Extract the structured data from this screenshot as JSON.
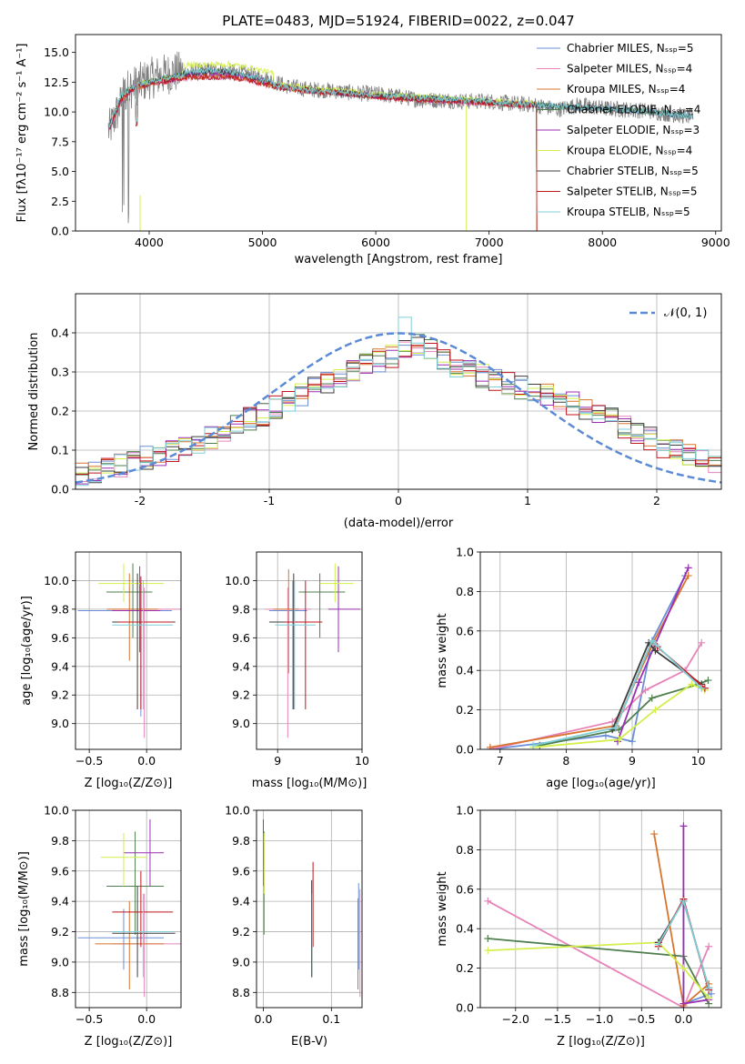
{
  "colors": [
    "#6a8fd8",
    "#e783b9",
    "#d8742c",
    "#4f7f4f",
    "#9b2fb3",
    "#d2ef4c",
    "#3d3d3d",
    "#c0161c",
    "#7fcfd6"
  ],
  "gray": "#808080",
  "normal_curve_color": "#5b8bd6",
  "chart_data": [
    {
      "id": "spectrum",
      "type": "line",
      "title": "PLATE=0483, MJD=51924, FIBERID=0022, z=0.047",
      "xlabel": "wavelength [Angstrom, rest frame]",
      "ylabel": "Flux [fλ10⁻¹⁷ erg cm⁻² s⁻¹ A⁻¹]",
      "xlim": [
        3350,
        9050
      ],
      "ylim": [
        0,
        16.5
      ],
      "xticks": [
        4000,
        5000,
        6000,
        7000,
        8000,
        9000
      ],
      "yticks": [
        0.0,
        2.5,
        5.0,
        7.5,
        10.0,
        12.5,
        15.0
      ],
      "ytick_labels": [
        "0.0",
        "2.5",
        "5.0",
        "7.5",
        "10.0",
        "12.5",
        "15.0"
      ],
      "grid": false,
      "legend_location": "upper right",
      "legend": [
        "Chabrier MILES, Nₛₛₚ=5",
        "Salpeter MILES, Nₛₛₚ=4",
        "Kroupa MILES, Nₛₛₚ=4",
        "Chabrier ELODIE, Nₛₛₚ=4",
        "Salpeter ELODIE, Nₛₛₚ=3",
        "Kroupa ELODIE, Nₛₛₚ=4",
        "Chabrier STELIB, Nₛₛₚ=5",
        "Salpeter STELIB, Nₛₛₚ=5",
        "Kroupa STELIB, Nₛₛₚ=5"
      ],
      "data_x": [
        3650,
        3800,
        4000,
        4200,
        4400,
        4600,
        4800,
        5000,
        5200,
        5400,
        5600,
        5800,
        6000,
        6200,
        6400,
        6600,
        6800,
        7000,
        7200,
        7400,
        7600,
        7800,
        8000,
        8200,
        8400,
        8600,
        8800
      ],
      "data_y": [
        8.5,
        11.8,
        12.8,
        13.3,
        13.4,
        13.5,
        13.3,
        12.9,
        12.2,
        11.9,
        11.8,
        11.6,
        11.5,
        11.3,
        11.0,
        11.0,
        10.9,
        10.9,
        10.7,
        10.6,
        10.2,
        10.6,
        10.3,
        10.2,
        10.1,
        9.8,
        9.6
      ],
      "model_x": [
        3650,
        3750,
        3850,
        4000,
        4150,
        4300,
        4500,
        4700,
        4900,
        5100,
        5300,
        5500,
        5700,
        5900,
        6100,
        6300,
        6500,
        6700,
        6900,
        7100,
        7300,
        7420
      ],
      "model_y": [
        8.6,
        11.0,
        11.9,
        12.4,
        12.6,
        12.9,
        13.0,
        13.0,
        12.7,
        12.2,
        11.9,
        11.7,
        11.6,
        11.4,
        11.2,
        11.1,
        11.0,
        10.9,
        10.8,
        10.7,
        10.6,
        10.6
      ],
      "stelib_x": [
        3650,
        3750,
        3850,
        4000,
        4150,
        4300,
        4500,
        4700,
        4900,
        5100,
        5300,
        5500,
        5700,
        5900,
        6100,
        6300,
        6500,
        6700,
        6900,
        7100,
        7300,
        7500,
        7700,
        7900,
        8100,
        8300,
        8500,
        8700,
        8800
      ],
      "stelib_y": [
        8.8,
        11.3,
        12.0,
        12.5,
        12.8,
        13.1,
        13.3,
        13.2,
        12.8,
        12.2,
        11.9,
        11.7,
        11.6,
        11.4,
        11.3,
        11.2,
        11.1,
        11.0,
        10.9,
        10.7,
        10.6,
        10.5,
        10.4,
        10.3,
        10.2,
        10.1,
        9.9,
        9.7,
        9.6
      ]
    },
    {
      "id": "residual-hist",
      "type": "line",
      "xlabel": "(data-model)/error",
      "ylabel": "Normed distribution",
      "xlim": [
        -2.5,
        2.5
      ],
      "ylim": [
        0,
        0.5
      ],
      "xticks": [
        -2,
        -1,
        0,
        1,
        2
      ],
      "yticks": [
        0.0,
        0.1,
        0.2,
        0.3,
        0.4
      ],
      "ytick_labels": [
        "0.0",
        "0.1",
        "0.2",
        "0.3",
        "0.4"
      ],
      "grid": true,
      "legend_location": "upper right",
      "legend": [
        "𝒩(0, 1)"
      ],
      "bin_start": -2.5,
      "bin_width": 0.1,
      "base": [
        0.04,
        0.045,
        0.05,
        0.06,
        0.07,
        0.08,
        0.09,
        0.1,
        0.11,
        0.12,
        0.13,
        0.15,
        0.16,
        0.18,
        0.19,
        0.21,
        0.22,
        0.24,
        0.26,
        0.27,
        0.29,
        0.3,
        0.32,
        0.33,
        0.34,
        0.36,
        0.37,
        0.36,
        0.33,
        0.31,
        0.3,
        0.29,
        0.28,
        0.27,
        0.26,
        0.25,
        0.24,
        0.23,
        0.22,
        0.2,
        0.19,
        0.18,
        0.16,
        0.14,
        0.13,
        0.11,
        0.1,
        0.09,
        0.08,
        0.06
      ]
    },
    {
      "id": "age-vs-z",
      "type": "scatter",
      "xlabel": "Z [log₁₀(Z/Z⊙)]",
      "ylabel": "age  [log₁₀(age/yr)]",
      "xlim": [
        -0.62,
        0.3
      ],
      "ylim": [
        8.82,
        10.2
      ],
      "xticks": [
        -0.5,
        0.0
      ],
      "xtick_labels": [
        "−0.5",
        "0.0"
      ],
      "yticks": [
        9.0,
        9.2,
        9.4,
        9.6,
        9.8,
        10.0
      ],
      "ytick_labels": [
        "9.0",
        "9.2",
        "9.4",
        "9.6",
        "9.8",
        "10.0"
      ],
      "grid": true,
      "points": [
        {
          "x": -0.05,
          "y": 9.79,
          "xlo": -0.6,
          "xhi": 0.22,
          "ylo": 9.05,
          "yhi": 9.99
        },
        {
          "x": -0.02,
          "y": 9.8,
          "xlo": -0.3,
          "xhi": 0.3,
          "ylo": 8.9,
          "yhi": 9.95
        },
        {
          "x": -0.15,
          "y": 9.8,
          "xlo": -0.35,
          "xhi": 0.1,
          "ylo": 9.44,
          "yhi": 10.05
        },
        {
          "x": -0.12,
          "y": 9.92,
          "xlo": -0.35,
          "xhi": 0.05,
          "ylo": 9.6,
          "yhi": 10.12
        },
        {
          "x": -0.06,
          "y": 9.79,
          "xlo": -0.3,
          "xhi": 0.12,
          "ylo": 9.5,
          "yhi": 10.1
        },
        {
          "x": -0.2,
          "y": 9.98,
          "xlo": -0.42,
          "xhi": 0.15,
          "ylo": 9.85,
          "yhi": 10.12
        },
        {
          "x": -0.08,
          "y": 9.71,
          "xlo": -0.3,
          "xhi": 0.25,
          "ylo": 9.1,
          "yhi": 10.05
        },
        {
          "x": -0.05,
          "y": 9.71,
          "xlo": -0.25,
          "xhi": 0.23,
          "ylo": 9.1,
          "yhi": 10.03
        },
        {
          "x": -0.03,
          "y": 9.69,
          "xlo": -0.3,
          "xhi": 0.23,
          "ylo": 9.1,
          "yhi": 10.0
        }
      ]
    },
    {
      "id": "age-vs-mass",
      "type": "scatter",
      "xlabel": "mass [log₁₀(M/M⊙)]",
      "xlim": [
        8.75,
        10.0
      ],
      "ylim": [
        8.82,
        10.2
      ],
      "xticks": [
        9,
        10
      ],
      "xtick_labels": [
        "9",
        "10"
      ],
      "yticks": [
        9.0,
        9.2,
        9.4,
        9.6,
        9.8,
        10.0
      ],
      "ytick_labels": [
        "9.0",
        "9.2",
        "9.4",
        "9.6",
        "9.8",
        "10.0"
      ],
      "grid": true,
      "points": [
        {
          "x": 9.18,
          "y": 9.79,
          "xlo": 8.9,
          "xhi": 9.35,
          "ylo": 9.1,
          "yhi": 10.0
        },
        {
          "x": 9.12,
          "y": 9.8,
          "xlo": 8.85,
          "xhi": 9.4,
          "ylo": 8.9,
          "yhi": 9.95
        },
        {
          "x": 9.13,
          "y": 9.8,
          "xlo": 8.95,
          "xhi": 9.25,
          "ylo": 9.35,
          "yhi": 10.08
        },
        {
          "x": 9.5,
          "y": 9.92,
          "xlo": 9.25,
          "xhi": 9.8,
          "ylo": 9.6,
          "yhi": 10.05
        },
        {
          "x": 9.72,
          "y": 9.8,
          "xlo": 9.6,
          "xhi": 9.98,
          "ylo": 9.5,
          "yhi": 10.1
        },
        {
          "x": 9.68,
          "y": 9.98,
          "xlo": 9.5,
          "xhi": 9.9,
          "ylo": 9.85,
          "yhi": 10.12
        },
        {
          "x": 9.19,
          "y": 9.71,
          "xlo": 8.9,
          "xhi": 9.45,
          "ylo": 9.1,
          "yhi": 10.05
        },
        {
          "x": 9.33,
          "y": 9.71,
          "xlo": 9.08,
          "xhi": 9.53,
          "ylo": 9.1,
          "yhi": 10.0
        },
        {
          "x": 9.2,
          "y": 9.69,
          "xlo": 8.97,
          "xhi": 9.45,
          "ylo": 9.1,
          "yhi": 10.0
        }
      ]
    },
    {
      "id": "weight-vs-age",
      "type": "line",
      "xlabel": "age  [log₁₀(age/yr)]",
      "ylabel": "mass weight",
      "xlim": [
        6.7,
        10.35
      ],
      "ylim": [
        0,
        1.0
      ],
      "xticks": [
        7,
        8,
        9,
        10
      ],
      "yticks": [
        0.0,
        0.2,
        0.4,
        0.6,
        0.8,
        1.0
      ],
      "ytick_labels": [
        "0.0",
        "0.2",
        "0.4",
        "0.6",
        "0.8",
        "1.0"
      ],
      "grid": true,
      "series": [
        {
          "x": [
            6.85,
            8.6,
            9.0,
            9.3,
            9.8
          ],
          "y": [
            0.0,
            0.07,
            0.04,
            0.55,
            0.88
          ]
        },
        {
          "x": [
            6.85,
            8.7,
            9.2,
            9.8,
            10.05
          ],
          "y": [
            0.0,
            0.14,
            0.3,
            0.4,
            0.54
          ]
        },
        {
          "x": [
            6.85,
            8.75,
            9.3,
            9.85
          ],
          "y": [
            0.01,
            0.12,
            0.53,
            0.88
          ]
        },
        {
          "x": [
            7.6,
            8.8,
            9.3,
            10.0,
            10.15
          ],
          "y": [
            0.02,
            0.1,
            0.26,
            0.33,
            0.35
          ]
        },
        {
          "x": [
            8.78,
            9.1,
            9.85
          ],
          "y": [
            0.04,
            0.34,
            0.92
          ]
        },
        {
          "x": [
            7.5,
            8.8,
            9.35,
            9.9,
            10.1
          ],
          "y": [
            0.01,
            0.05,
            0.2,
            0.33,
            0.3
          ]
        },
        {
          "x": [
            8.7,
            9.25,
            9.35,
            10.05
          ],
          "y": [
            0.1,
            0.54,
            0.5,
            0.33
          ]
        },
        {
          "x": [
            8.75,
            9.3,
            9.38,
            10.1
          ],
          "y": [
            0.11,
            0.55,
            0.52,
            0.31
          ]
        },
        {
          "x": [
            7.5,
            8.75,
            9.3,
            9.36,
            10.05
          ],
          "y": [
            0.02,
            0.11,
            0.55,
            0.53,
            0.31
          ]
        }
      ]
    },
    {
      "id": "mass-vs-z",
      "type": "scatter",
      "xlabel": "Z [log₁₀(Z/Z⊙)]",
      "ylabel": "mass [log₁₀(M/M⊙)]",
      "xlim": [
        -0.62,
        0.3
      ],
      "ylim": [
        8.7,
        10.0
      ],
      "xticks": [
        -0.5,
        0.0
      ],
      "xtick_labels": [
        "−0.5",
        "0.0"
      ],
      "yticks": [
        8.8,
        9.0,
        9.2,
        9.4,
        9.6,
        9.8,
        10.0
      ],
      "ytick_labels": [
        "8.8",
        "9.0",
        "9.2",
        "9.4",
        "9.6",
        "9.8",
        "10.0"
      ],
      "grid": true,
      "points": [
        {
          "x": -0.2,
          "y": 9.16,
          "xlo": -0.6,
          "xhi": 0.15,
          "ylo": 8.95,
          "yhi": 9.35
        },
        {
          "x": -0.02,
          "y": 9.12,
          "xlo": -0.3,
          "xhi": 0.3,
          "ylo": 8.77,
          "yhi": 9.45
        },
        {
          "x": -0.15,
          "y": 9.12,
          "xlo": -0.45,
          "xhi": 0.15,
          "ylo": 8.82,
          "yhi": 9.4
        },
        {
          "x": -0.1,
          "y": 9.5,
          "xlo": -0.35,
          "xhi": 0.15,
          "ylo": 9.18,
          "yhi": 9.86
        },
        {
          "x": 0.03,
          "y": 9.72,
          "xlo": -0.2,
          "xhi": 0.15,
          "ylo": 9.5,
          "yhi": 9.94
        },
        {
          "x": -0.2,
          "y": 9.69,
          "xlo": -0.4,
          "xhi": 0.0,
          "ylo": 9.5,
          "yhi": 9.85
        },
        {
          "x": -0.08,
          "y": 9.19,
          "xlo": -0.3,
          "xhi": 0.25,
          "ylo": 8.9,
          "yhi": 9.5
        },
        {
          "x": -0.05,
          "y": 9.33,
          "xlo": -0.3,
          "xhi": 0.23,
          "ylo": 9.1,
          "yhi": 9.6
        },
        {
          "x": -0.03,
          "y": 9.2,
          "xlo": -0.3,
          "xhi": 0.23,
          "ylo": 8.9,
          "yhi": 9.45
        }
      ]
    },
    {
      "id": "mass-vs-ebv",
      "type": "scatter",
      "xlabel": "E(B-V)",
      "xlim": [
        -0.01,
        0.145
      ],
      "ylim": [
        8.7,
        10.0
      ],
      "xticks": [
        0.0,
        0.1
      ],
      "xtick_labels": [
        "0.0",
        "0.1"
      ],
      "yticks": [
        8.8,
        9.0,
        9.2,
        9.4,
        9.6,
        9.8,
        10.0
      ],
      "ytick_labels": [
        "8.8",
        "9.0",
        "9.2",
        "9.4",
        "9.6",
        "9.8",
        "10.0"
      ],
      "grid": true,
      "points": [
        {
          "x": 0.14,
          "y": 9.16,
          "xlo": 0.14,
          "xhi": 0.14,
          "ylo": 8.95,
          "yhi": 9.52
        },
        {
          "x": 0.142,
          "y": 9.12,
          "xlo": 0.142,
          "xhi": 0.142,
          "ylo": 8.77,
          "yhi": 9.48
        },
        {
          "x": 0.139,
          "y": 9.12,
          "xlo": 0.139,
          "xhi": 0.139,
          "ylo": 8.82,
          "yhi": 9.42
        },
        {
          "x": 0.001,
          "y": 9.5,
          "xlo": 0.001,
          "xhi": 0.001,
          "ylo": 9.18,
          "yhi": 9.86
        },
        {
          "x": 0.0,
          "y": 9.72,
          "xlo": 0.0,
          "xhi": 0.0,
          "ylo": 9.5,
          "yhi": 9.94
        },
        {
          "x": 0.001,
          "y": 9.69,
          "xlo": 0.001,
          "xhi": 0.001,
          "ylo": 9.45,
          "yhi": 9.85
        },
        {
          "x": 0.071,
          "y": 9.19,
          "xlo": 0.071,
          "xhi": 0.071,
          "ylo": 8.9,
          "yhi": 9.54
        },
        {
          "x": 0.073,
          "y": 9.33,
          "xlo": 0.073,
          "xhi": 0.073,
          "ylo": 9.1,
          "yhi": 9.66
        },
        {
          "x": 0.072,
          "y": 9.2,
          "xlo": 0.072,
          "xhi": 0.072,
          "ylo": 8.9,
          "yhi": 9.45
        }
      ]
    },
    {
      "id": "weight-vs-z",
      "type": "line",
      "xlabel": "Z [log₁₀(Z/Z⊙)]",
      "ylabel": "mass weight",
      "xlim": [
        -2.42,
        0.45
      ],
      "ylim": [
        0,
        1.0
      ],
      "xticks": [
        -2.0,
        -1.5,
        -1.0,
        -0.5,
        0.0
      ],
      "xtick_labels": [
        "−2.0",
        "−1.5",
        "−1.0",
        "−0.5",
        "0.0"
      ],
      "yticks": [
        0.0,
        0.2,
        0.4,
        0.6,
        0.8,
        1.0
      ],
      "ytick_labels": [
        "0.0",
        "0.2",
        "0.4",
        "0.6",
        "0.8",
        "1.0"
      ],
      "grid": true,
      "series": [
        {
          "x": [
            0.0,
            0.0,
            0.33
          ],
          "y": [
            0.55,
            0.02,
            0.07
          ]
        },
        {
          "x": [
            -2.33,
            0.0,
            0.3
          ],
          "y": [
            0.54,
            0.0,
            0.31
          ]
        },
        {
          "x": [
            -0.35,
            0.0,
            0.3
          ],
          "y": [
            0.88,
            0.01,
            0.12
          ]
        },
        {
          "x": [
            -2.33,
            0.0,
            0.3
          ],
          "y": [
            0.35,
            0.26,
            0.02
          ]
        },
        {
          "x": [
            0.0,
            0.0,
            0.3
          ],
          "y": [
            0.92,
            0.02,
            0.04
          ]
        },
        {
          "x": [
            -2.33,
            -0.3,
            0.0,
            0.3
          ],
          "y": [
            0.29,
            0.33,
            0.2,
            0.05
          ]
        },
        {
          "x": [
            -0.3,
            0.0,
            0.3
          ],
          "y": [
            0.33,
            0.54,
            0.1
          ]
        },
        {
          "x": [
            -0.3,
            0.0,
            0.3
          ],
          "y": [
            0.31,
            0.55,
            0.09
          ]
        },
        {
          "x": [
            -0.3,
            0.0,
            0.3
          ],
          "y": [
            0.32,
            0.54,
            0.1
          ]
        }
      ]
    }
  ]
}
